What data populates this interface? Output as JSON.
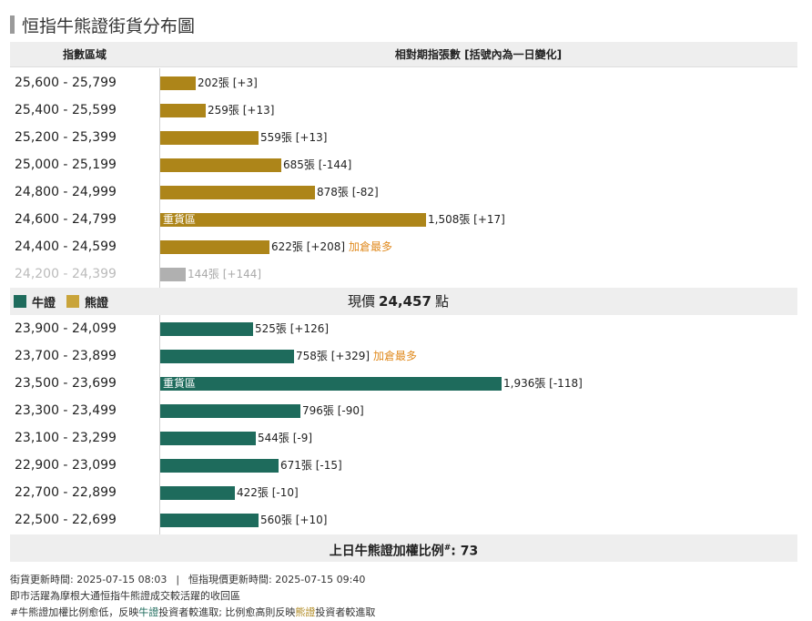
{
  "title": "恒指牛熊證街貨分布圖",
  "header": {
    "range_col": "指數區域",
    "value_col": "相對期指張數 [括號內為一日變化]"
  },
  "legend": {
    "bull": "牛證",
    "bear": "熊證"
  },
  "current_price": {
    "label": "現價",
    "value": "24,457",
    "unit": "點"
  },
  "ratio": {
    "label": "上日牛熊證加權比例",
    "mark": "#",
    "value": ": 73"
  },
  "footer": {
    "line1_a": "街貨更新時間: 2025-07-15 08:03",
    "divider": "|",
    "line1_b": "恒指現價更新時間: 2025-07-15 09:40",
    "line2": "即市活躍為摩根大通恒指牛熊證成交較活躍的收回區",
    "line3_a": "#牛熊證加權比例愈低，反映",
    "line3_bull": "牛證",
    "line3_b": "投資者較進取; 比例愈高則反映",
    "line3_bear": "熊證",
    "line3_c": "投資者較進取"
  },
  "colors": {
    "bull": "#1e6b5c",
    "bear": "#ad8519",
    "bear_legend": "#c9a43a",
    "faded": "#b0b0b0",
    "accent": "#e08a1e",
    "header_bg": "#eeeeee"
  },
  "chart_data": {
    "type": "bar",
    "orientation": "horizontal",
    "xlim": [
      0,
      2000
    ],
    "bear_rows": [
      {
        "range": "25,600 - 25,799",
        "value": 202,
        "label": "202張 [+3]",
        "inbar": "",
        "extra": ""
      },
      {
        "range": "25,400 - 25,599",
        "value": 259,
        "label": "259張 [+13]",
        "inbar": "",
        "extra": ""
      },
      {
        "range": "25,200 - 25,399",
        "value": 559,
        "label": "559張 [+13]",
        "inbar": "",
        "extra": ""
      },
      {
        "range": "25,000 - 25,199",
        "value": 685,
        "label": "685張 [-144]",
        "inbar": "",
        "extra": ""
      },
      {
        "range": "24,800 - 24,999",
        "value": 878,
        "label": "878張 [-82]",
        "inbar": "",
        "extra": ""
      },
      {
        "range": "24,600 - 24,799",
        "value": 1508,
        "label": "1,508張 [+17]",
        "inbar": "重貨區",
        "extra": ""
      },
      {
        "range": "24,400 - 24,599",
        "value": 622,
        "label": "622張 [+208]",
        "inbar": "",
        "extra": "加倉最多"
      },
      {
        "range": "24,200 - 24,399",
        "value": 144,
        "label": "144張 [+144]",
        "inbar": "",
        "extra": "",
        "faded": true
      }
    ],
    "bull_rows": [
      {
        "range": "23,900 - 24,099",
        "value": 525,
        "label": "525張 [+126]",
        "inbar": "",
        "extra": ""
      },
      {
        "range": "23,700 - 23,899",
        "value": 758,
        "label": "758張 [+329]",
        "inbar": "",
        "extra": "加倉最多"
      },
      {
        "range": "23,500 - 23,699",
        "value": 1936,
        "label": "1,936張 [-118]",
        "inbar": "重貨區",
        "extra": ""
      },
      {
        "range": "23,300 - 23,499",
        "value": 796,
        "label": "796張 [-90]",
        "inbar": "",
        "extra": ""
      },
      {
        "range": "23,100 - 23,299",
        "value": 544,
        "label": "544張 [-9]",
        "inbar": "",
        "extra": ""
      },
      {
        "range": "22,900 - 23,099",
        "value": 671,
        "label": "671張 [-15]",
        "inbar": "",
        "extra": ""
      },
      {
        "range": "22,700 - 22,899",
        "value": 422,
        "label": "422張 [-10]",
        "inbar": "",
        "extra": ""
      },
      {
        "range": "22,500 - 22,699",
        "value": 560,
        "label": "560張 [+10]",
        "inbar": "",
        "extra": ""
      }
    ]
  }
}
